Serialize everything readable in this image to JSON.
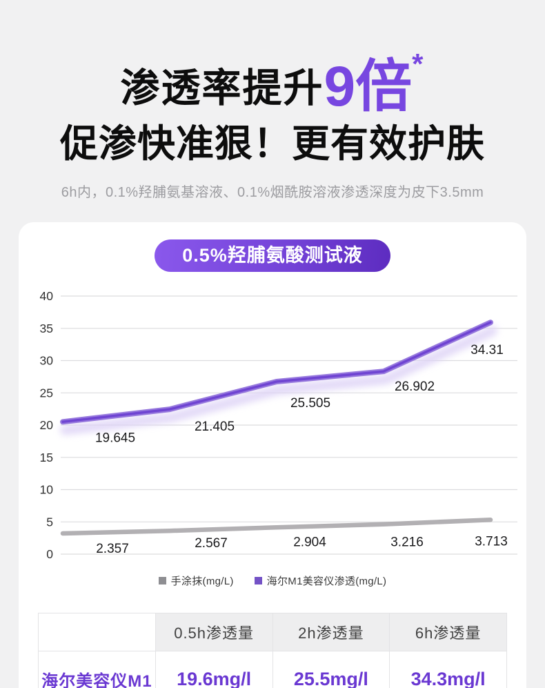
{
  "hero": {
    "title_prefix": "渗透率提升",
    "title_highlight": "9倍",
    "title_asterisk": "*",
    "title_line2": "促渗快准狠！更有效护肤",
    "subtitle": "6h内，0.1%羟脯氨基溶液、0.1%烟酰胺溶液渗透深度为皮下3.5mm"
  },
  "card": {
    "badge_label": "0.5%羟脯氨酸测试液"
  },
  "chart_data": {
    "type": "line",
    "title": "0.5%羟脯氨酸测试液",
    "xlabel": "",
    "ylabel": "",
    "ylim": [
      0,
      40
    ],
    "ytick_step": 5,
    "grid": true,
    "legend_position": "bottom",
    "series": [
      {
        "name": "手涂抹(mg/L)",
        "color": "#b2b0b3",
        "legend_color": "#8e8e92",
        "values": [
          2.357,
          2.567,
          2.904,
          3.216,
          3.713
        ]
      },
      {
        "name": "海尔M1美容仪渗透(mg/L)",
        "color": "#7e57d6",
        "legend_color": "#7452c6",
        "values": [
          19.645,
          21.405,
          25.505,
          26.902,
          34.31
        ]
      }
    ]
  },
  "table": {
    "headers": [
      "",
      "0.5h渗透量",
      "2h渗透量",
      "6h渗透量"
    ],
    "rows": [
      {
        "label": "海尔美容仪M1",
        "values": [
          "19.6mg/l",
          "25.5mg/l",
          "34.3mg/l"
        ]
      }
    ]
  },
  "colors": {
    "accent_purple": "#7746e0",
    "badge_gradient_start": "#8a58ec",
    "badge_gradient_end": "#5d2cc0",
    "table_text_purple": "#6a38d2",
    "gridline": "#dcdcde",
    "page_background": "#f1f1f2",
    "card_background": "#ffffff"
  }
}
